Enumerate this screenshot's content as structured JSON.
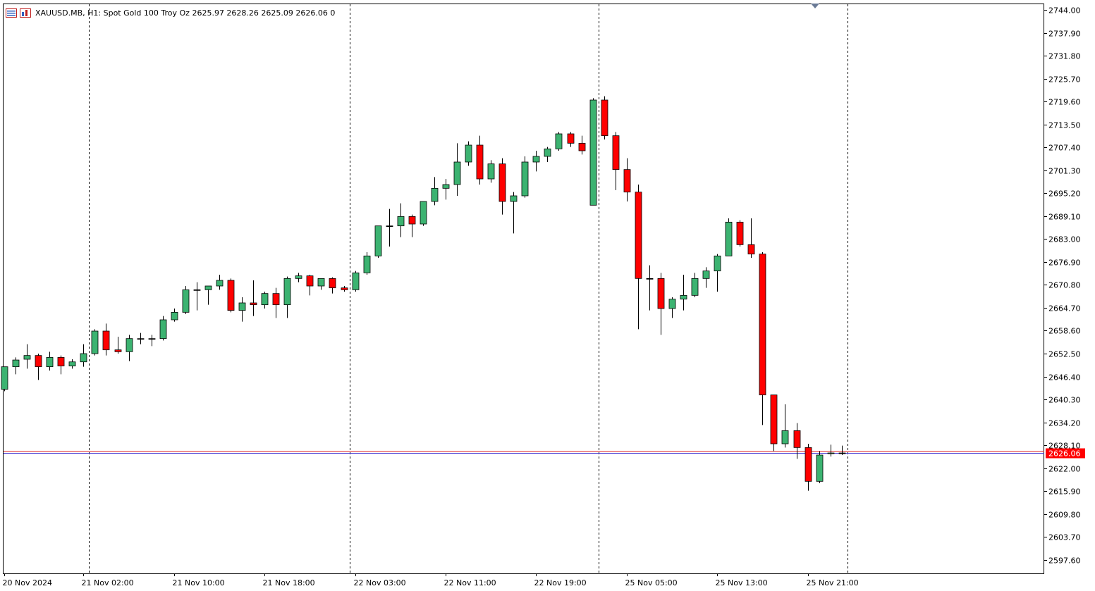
{
  "header": {
    "symbol_line": "XAUUSD.MB, H1:  Spot Gold 100 Troy Oz  2625.97 2628.26 2625.09 2626.06  0",
    "icons": [
      "chart-window-icon",
      "indicator-icon"
    ]
  },
  "colors": {
    "bull": "#3cb371",
    "bear": "#ff0000",
    "outline": "#000000",
    "bid_line": "#4a3fd4",
    "ask_line": "#e03030",
    "price_tag_bg": "#ff0000",
    "price_tag_fg": "#ffffff"
  },
  "chart_data": {
    "type": "candlestick",
    "title": "XAUUSD.MB, H1:  Spot Gold 100 Troy Oz",
    "timeframe": "H1",
    "ylim": [
      2594.0,
      2745.5
    ],
    "y_ticks": [
      "2744.00",
      "2737.90",
      "2731.80",
      "2725.70",
      "2719.60",
      "2713.50",
      "2707.40",
      "2701.30",
      "2695.20",
      "2689.10",
      "2683.00",
      "2676.90",
      "2670.80",
      "2664.70",
      "2658.60",
      "2652.50",
      "2646.40",
      "2640.30",
      "2634.20",
      "2628.10",
      "2622.00",
      "2615.90",
      "2609.80",
      "2603.70",
      "2597.60"
    ],
    "x_ticks": [
      "20 Nov 2024",
      "21 Nov 02:00",
      "21 Nov 10:00",
      "21 Nov 18:00",
      "22 Nov 03:00",
      "22 Nov 11:00",
      "22 Nov 19:00",
      "25 Nov 05:00",
      "25 Nov 13:00",
      "25 Nov 21:00"
    ],
    "x_tick_index": [
      0,
      7,
      15,
      23,
      31,
      39,
      47,
      55,
      63,
      71
    ],
    "session_separators_index": [
      7,
      30,
      52,
      74
    ],
    "current_price": "2626.06",
    "current_price_value": 2626.06,
    "ask_price_value": 2626.6,
    "candles": [
      {
        "o": 2643.0,
        "h": 2649.0,
        "l": 2642.5,
        "c": 2649.0
      },
      {
        "o": 2649.0,
        "h": 2651.5,
        "l": 2647.0,
        "c": 2650.8
      },
      {
        "o": 2651.0,
        "h": 2655.0,
        "l": 2648.5,
        "c": 2652.0
      },
      {
        "o": 2652.0,
        "h": 2652.5,
        "l": 2645.5,
        "c": 2649.0
      },
      {
        "o": 2649.0,
        "h": 2653.0,
        "l": 2648.0,
        "c": 2651.5
      },
      {
        "o": 2651.5,
        "h": 2652.0,
        "l": 2647.0,
        "c": 2649.2
      },
      {
        "o": 2649.2,
        "h": 2651.0,
        "l": 2648.5,
        "c": 2650.3
      },
      {
        "o": 2650.3,
        "h": 2655.0,
        "l": 2649.0,
        "c": 2652.5
      },
      {
        "o": 2652.5,
        "h": 2659.0,
        "l": 2652.0,
        "c": 2658.5
      },
      {
        "o": 2658.5,
        "h": 2660.5,
        "l": 2652.0,
        "c": 2653.5
      },
      {
        "o": 2653.5,
        "h": 2657.0,
        "l": 2652.5,
        "c": 2653.0
      },
      {
        "o": 2653.0,
        "h": 2657.5,
        "l": 2650.5,
        "c": 2656.5
      },
      {
        "o": 2656.5,
        "h": 2658.0,
        "l": 2655.0,
        "c": 2656.5
      },
      {
        "o": 2656.5,
        "h": 2657.5,
        "l": 2654.5,
        "c": 2656.5
      },
      {
        "o": 2656.5,
        "h": 2662.5,
        "l": 2656.0,
        "c": 2661.5
      },
      {
        "o": 2661.5,
        "h": 2664.5,
        "l": 2661.0,
        "c": 2663.5
      },
      {
        "o": 2663.5,
        "h": 2670.5,
        "l": 2663.0,
        "c": 2669.5
      },
      {
        "o": 2669.5,
        "h": 2671.5,
        "l": 2664.0,
        "c": 2669.5
      },
      {
        "o": 2669.5,
        "h": 2670.5,
        "l": 2665.5,
        "c": 2670.5
      },
      {
        "o": 2670.5,
        "h": 2673.5,
        "l": 2669.5,
        "c": 2672.0
      },
      {
        "o": 2672.0,
        "h": 2672.5,
        "l": 2663.5,
        "c": 2664.0
      },
      {
        "o": 2664.0,
        "h": 2667.5,
        "l": 2661.0,
        "c": 2666.0
      },
      {
        "o": 2666.0,
        "h": 2672.0,
        "l": 2662.5,
        "c": 2665.5
      },
      {
        "o": 2665.5,
        "h": 2669.0,
        "l": 2664.5,
        "c": 2668.5
      },
      {
        "o": 2668.5,
        "h": 2670.0,
        "l": 2662.0,
        "c": 2665.5
      },
      {
        "o": 2665.5,
        "h": 2673.0,
        "l": 2662.0,
        "c": 2672.5
      },
      {
        "o": 2672.5,
        "h": 2674.0,
        "l": 2671.5,
        "c": 2673.2
      },
      {
        "o": 2673.2,
        "h": 2673.5,
        "l": 2668.0,
        "c": 2670.5
      },
      {
        "o": 2670.5,
        "h": 2672.5,
        "l": 2669.5,
        "c": 2672.5
      },
      {
        "o": 2672.5,
        "h": 2672.8,
        "l": 2668.5,
        "c": 2670.0
      },
      {
        "o": 2670.0,
        "h": 2670.5,
        "l": 2669.0,
        "c": 2669.5
      },
      {
        "o": 2669.5,
        "h": 2674.5,
        "l": 2669.0,
        "c": 2674.0
      },
      {
        "o": 2674.0,
        "h": 2679.5,
        "l": 2673.5,
        "c": 2678.5
      },
      {
        "o": 2678.5,
        "h": 2686.5,
        "l": 2678.0,
        "c": 2686.5
      },
      {
        "o": 2686.5,
        "h": 2691.0,
        "l": 2681.0,
        "c": 2686.5
      },
      {
        "o": 2686.5,
        "h": 2692.5,
        "l": 2683.5,
        "c": 2689.0
      },
      {
        "o": 2689.0,
        "h": 2689.5,
        "l": 2683.5,
        "c": 2687.0
      },
      {
        "o": 2687.0,
        "h": 2693.0,
        "l": 2686.5,
        "c": 2693.0
      },
      {
        "o": 2693.0,
        "h": 2699.5,
        "l": 2692.0,
        "c": 2696.5
      },
      {
        "o": 2696.5,
        "h": 2699.0,
        "l": 2693.5,
        "c": 2697.5
      },
      {
        "o": 2697.5,
        "h": 2708.5,
        "l": 2694.5,
        "c": 2703.5
      },
      {
        "o": 2703.5,
        "h": 2709.0,
        "l": 2702.5,
        "c": 2708.0
      },
      {
        "o": 2708.0,
        "h": 2710.5,
        "l": 2697.5,
        "c": 2699.0
      },
      {
        "o": 2699.0,
        "h": 2704.0,
        "l": 2698.0,
        "c": 2703.0
      },
      {
        "o": 2703.0,
        "h": 2704.5,
        "l": 2689.5,
        "c": 2693.0
      },
      {
        "o": 2693.0,
        "h": 2695.5,
        "l": 2684.5,
        "c": 2694.5
      },
      {
        "o": 2694.5,
        "h": 2705.0,
        "l": 2694.0,
        "c": 2703.5
      },
      {
        "o": 2703.5,
        "h": 2706.5,
        "l": 2701.0,
        "c": 2705.0
      },
      {
        "o": 2705.0,
        "h": 2707.5,
        "l": 2703.5,
        "c": 2707.0
      },
      {
        "o": 2707.0,
        "h": 2711.5,
        "l": 2706.5,
        "c": 2711.0
      },
      {
        "o": 2711.0,
        "h": 2711.5,
        "l": 2707.5,
        "c": 2708.5
      },
      {
        "o": 2708.5,
        "h": 2710.5,
        "l": 2705.5,
        "c": 2706.5
      },
      {
        "o": 2692.0,
        "h": 2720.5,
        "l": 2692.0,
        "c": 2720.0
      },
      {
        "o": 2720.0,
        "h": 2721.0,
        "l": 2709.5,
        "c": 2710.5
      },
      {
        "o": 2710.5,
        "h": 2711.5,
        "l": 2696.0,
        "c": 2701.5
      },
      {
        "o": 2701.5,
        "h": 2704.5,
        "l": 2693.0,
        "c": 2695.5
      },
      {
        "o": 2695.5,
        "h": 2697.5,
        "l": 2659.0,
        "c": 2672.5
      },
      {
        "o": 2672.5,
        "h": 2676.0,
        "l": 2664.0,
        "c": 2672.5
      },
      {
        "o": 2672.5,
        "h": 2674.0,
        "l": 2657.5,
        "c": 2664.5
      },
      {
        "o": 2664.5,
        "h": 2667.5,
        "l": 2662.0,
        "c": 2667.0
      },
      {
        "o": 2667.0,
        "h": 2673.5,
        "l": 2664.0,
        "c": 2668.0
      },
      {
        "o": 2668.0,
        "h": 2674.0,
        "l": 2667.5,
        "c": 2672.5
      },
      {
        "o": 2672.5,
        "h": 2675.5,
        "l": 2670.0,
        "c": 2674.5
      },
      {
        "o": 2674.5,
        "h": 2679.0,
        "l": 2669.0,
        "c": 2678.5
      },
      {
        "o": 2678.5,
        "h": 2688.5,
        "l": 2678.5,
        "c": 2687.5
      },
      {
        "o": 2687.5,
        "h": 2688.0,
        "l": 2681.0,
        "c": 2681.5
      },
      {
        "o": 2681.5,
        "h": 2688.5,
        "l": 2678.0,
        "c": 2679.0
      },
      {
        "o": 2679.0,
        "h": 2679.5,
        "l": 2633.5,
        "c": 2641.5
      },
      {
        "o": 2641.5,
        "h": 2641.5,
        "l": 2626.5,
        "c": 2628.5
      },
      {
        "o": 2628.5,
        "h": 2639.0,
        "l": 2627.5,
        "c": 2632.0
      },
      {
        "o": 2632.0,
        "h": 2634.0,
        "l": 2624.5,
        "c": 2627.5
      },
      {
        "o": 2627.5,
        "h": 2628.5,
        "l": 2616.0,
        "c": 2618.5
      },
      {
        "o": 2618.5,
        "h": 2626.5,
        "l": 2618.0,
        "c": 2625.5
      },
      {
        "o": 2625.97,
        "h": 2628.26,
        "l": 2625.09,
        "c": 2626.06
      },
      {
        "o": 2626.06,
        "h": 2628.0,
        "l": 2625.5,
        "c": 2626.06
      }
    ]
  }
}
